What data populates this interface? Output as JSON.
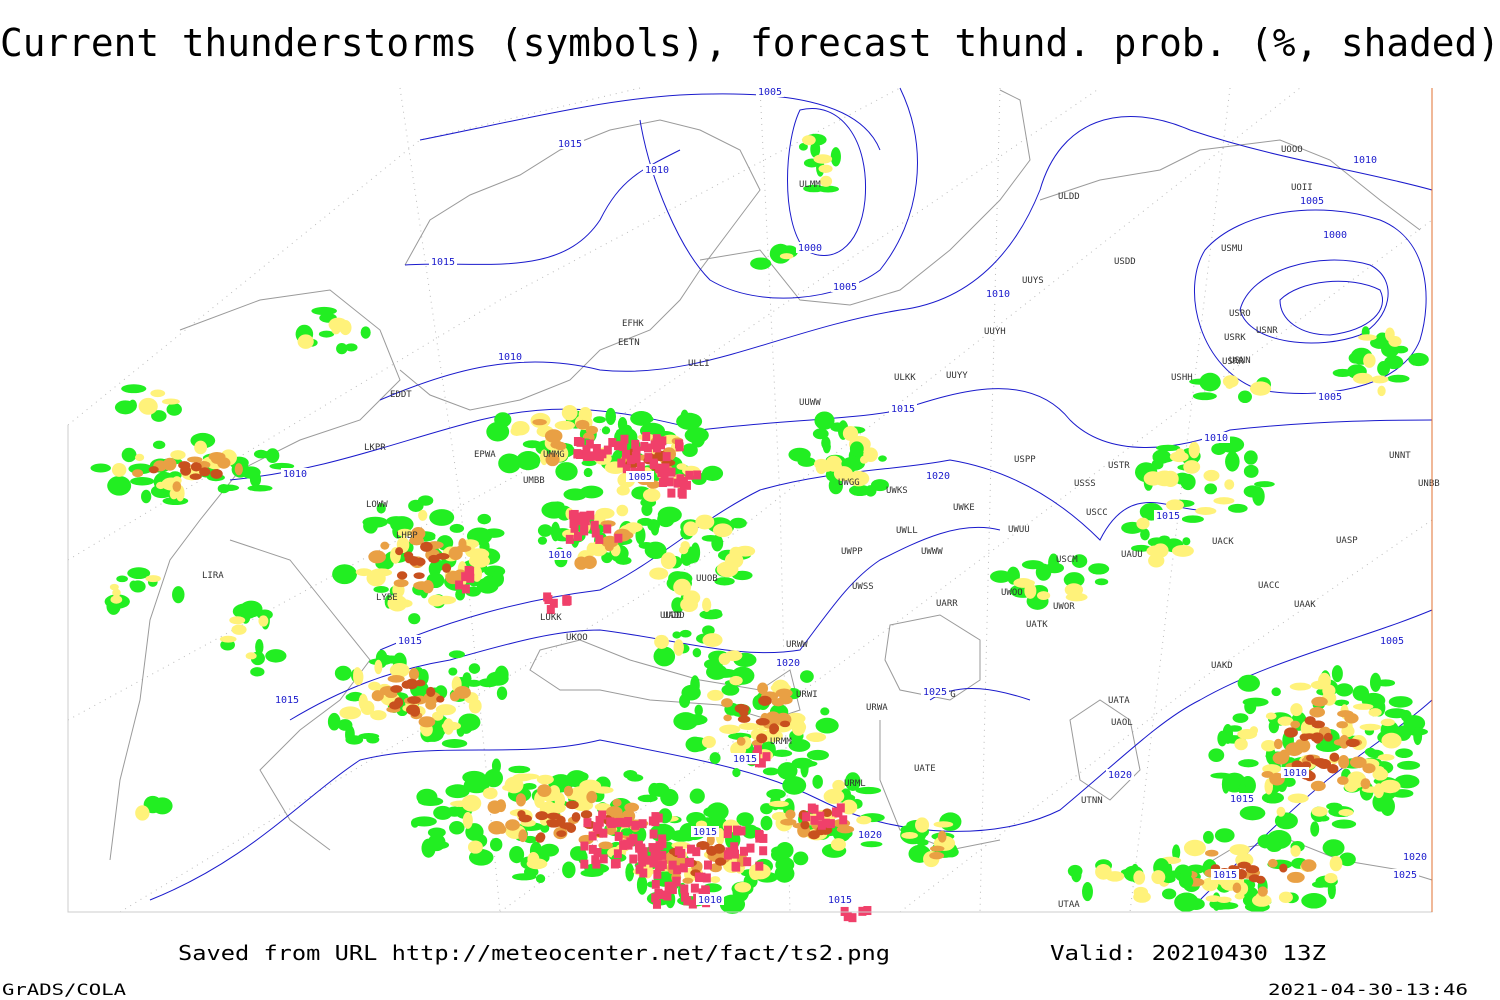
{
  "header": {
    "title": "Current thunderstorms (symbols), forecast thund. prob. (%, shaded)"
  },
  "isobar_labels": [
    "1005",
    "1015",
    "1010",
    "1000",
    "1005",
    "1015",
    "1010",
    "1010",
    "1015",
    "1010",
    "1005",
    "1000",
    "1005",
    "1010",
    "1010",
    "1005",
    "1020",
    "1015",
    "1010",
    "1015",
    "1020",
    "1015",
    "1025",
    "1015",
    "1020",
    "1010",
    "1015",
    "1015",
    "1020",
    "1015",
    "1010",
    "1015",
    "1005",
    "1020",
    "1025"
  ],
  "stations": [
    "ULDD",
    "USDD",
    "UUYS",
    "UUYH",
    "ULKK",
    "UUYY",
    "EFHK",
    "EETN",
    "ULLI",
    "EDDT",
    "EPWA",
    "LKPR",
    "LOWW",
    "LHBP",
    "LIRA",
    "LYBE",
    "LUKK",
    "UKOO",
    "UUOB",
    "UUDD",
    "UWPP",
    "UWWW",
    "UWSS",
    "UWKE",
    "UWUU",
    "USSS",
    "USTR",
    "USPP",
    "USCC",
    "UUWW",
    "UWGG",
    "UWKS",
    "UWLL",
    "UARR",
    "URWW",
    "URWI",
    "URWA",
    "UATG",
    "UATA",
    "UAOL",
    "UATE",
    "URML",
    "URMM",
    "UTAA",
    "UTNN",
    "UWOR",
    "UATK",
    "UWOO",
    "USCM",
    "UAUU",
    "UACK",
    "UACC",
    "UAAK",
    "UAKD",
    "UASP",
    "UNBB",
    "UNNT",
    "USHH",
    "USNN",
    "USRR",
    "USMU",
    "USRO",
    "USNR",
    "USRK",
    "UOOO",
    "UOII",
    "ULMM",
    "UMMG",
    "UMBB",
    "UADD"
  ],
  "footer": {
    "source": "Saved from URL http://meteocenter.net/fact/ts2.png",
    "valid": "Valid: 20210430 13Z",
    "software": "GrADS/COLA",
    "timestamp": "2021-04-30-13:46"
  }
}
